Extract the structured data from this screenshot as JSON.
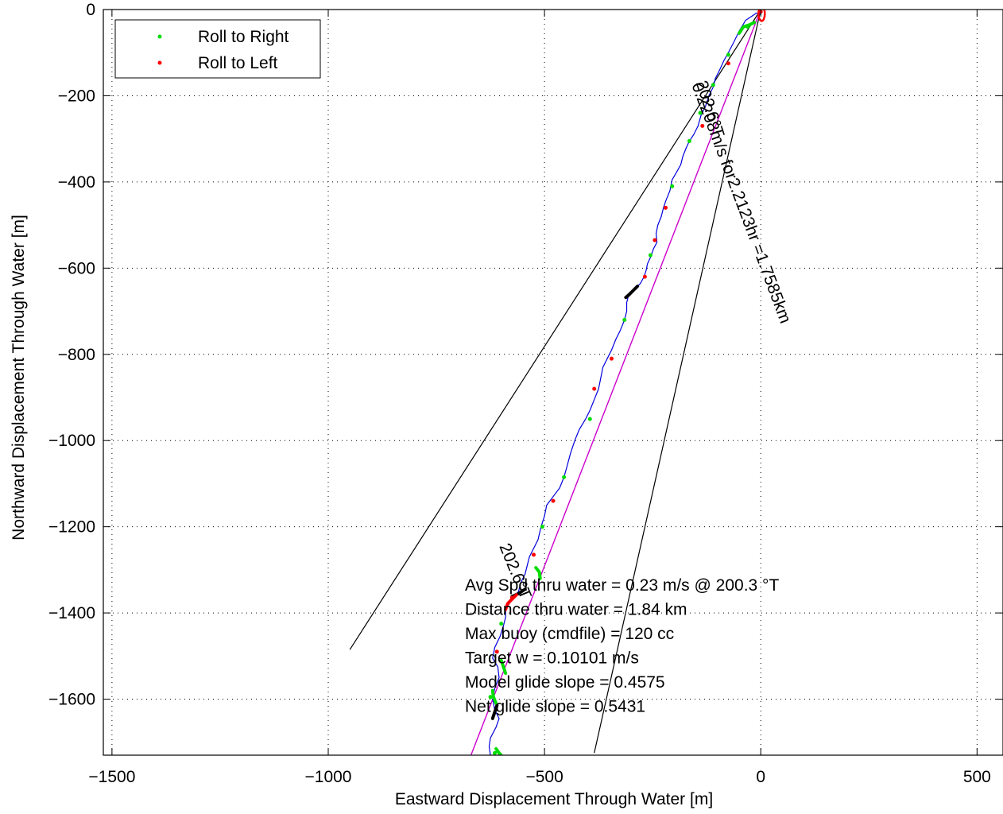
{
  "chart_data": {
    "type": "line",
    "title": "",
    "xlabel": "Eastward Displacement Through Water [m]",
    "ylabel": "Northward Displacement Through Water [m]",
    "xlim": [
      -1520,
      560
    ],
    "ylim": [
      -1730,
      0
    ],
    "x_ticks": [
      -1500,
      -1000,
      -500,
      0,
      500
    ],
    "y_ticks": [
      0,
      -200,
      -400,
      -600,
      -800,
      -1000,
      -1200,
      -1400,
      -1600
    ],
    "x_tick_labels": [
      "−1500",
      "−1000",
      "−500",
      "0",
      "500"
    ],
    "y_tick_labels": [
      "0",
      "−200",
      "−400",
      "−600",
      "−800",
      "−1000",
      "−1200",
      "−1400",
      "−1600"
    ],
    "grid": true,
    "legend": {
      "placement": "top-left",
      "entries": [
        {
          "label": "Roll to Right",
          "color": "#00dd00"
        },
        {
          "label": "Roll to Left",
          "color": "#ff0000"
        }
      ]
    },
    "colors": {
      "track": "#0000dd",
      "net_line": "#cc00cc",
      "reference_lines": "#000000",
      "roll_right": "#00dd00",
      "roll_left": "#ff0000",
      "thick_segments": "#000000"
    },
    "reference_lines": [
      {
        "from": [
          0,
          0
        ],
        "to": [
          -950,
          -1485
        ]
      },
      {
        "from": [
          0,
          0
        ],
        "to": [
          -385,
          -1725
        ]
      }
    ],
    "net_line": {
      "from": [
        0,
        0
      ],
      "to": [
        -670,
        -1730
      ]
    },
    "track": [
      [
        0,
        -10
      ],
      [
        -10,
        -8
      ],
      [
        -20,
        -15
      ],
      [
        -35,
        -25
      ],
      [
        -50,
        -50
      ],
      [
        -62,
        -75
      ],
      [
        -75,
        -100
      ],
      [
        -85,
        -118
      ],
      [
        -95,
        -140
      ],
      [
        -105,
        -160
      ],
      [
        -110,
        -180
      ],
      [
        -120,
        -200
      ],
      [
        -128,
        -225
      ],
      [
        -138,
        -245
      ],
      [
        -145,
        -270
      ],
      [
        -155,
        -290
      ],
      [
        -165,
        -305
      ],
      [
        -172,
        -320
      ],
      [
        -180,
        -340
      ],
      [
        -185,
        -360
      ],
      [
        -195,
        -378
      ],
      [
        -205,
        -395
      ],
      [
        -210,
        -420
      ],
      [
        -220,
        -445
      ],
      [
        -225,
        -460
      ],
      [
        -230,
        -480
      ],
      [
        -238,
        -500
      ],
      [
        -242,
        -520
      ],
      [
        -240,
        -540
      ],
      [
        -248,
        -555
      ],
      [
        -255,
        -575
      ],
      [
        -262,
        -590
      ],
      [
        -265,
        -605
      ],
      [
        -270,
        -620
      ],
      [
        -278,
        -635
      ],
      [
        -290,
        -648
      ],
      [
        -305,
        -660
      ],
      [
        -310,
        -680
      ],
      [
        -310,
        -700
      ],
      [
        -315,
        -720
      ],
      [
        -325,
        -745
      ],
      [
        -335,
        -765
      ],
      [
        -345,
        -790
      ],
      [
        -355,
        -810
      ],
      [
        -365,
        -830
      ],
      [
        -370,
        -855
      ],
      [
        -375,
        -880
      ],
      [
        -385,
        -905
      ],
      [
        -395,
        -930
      ],
      [
        -405,
        -950
      ],
      [
        -420,
        -975
      ],
      [
        -430,
        -1000
      ],
      [
        -440,
        -1030
      ],
      [
        -448,
        -1060
      ],
      [
        -455,
        -1085
      ],
      [
        -465,
        -1110
      ],
      [
        -480,
        -1130
      ],
      [
        -495,
        -1150
      ],
      [
        -500,
        -1175
      ],
      [
        -508,
        -1200
      ],
      [
        -515,
        -1230
      ],
      [
        -525,
        -1250
      ],
      [
        -535,
        -1270
      ],
      [
        -540,
        -1290
      ],
      [
        -545,
        -1310
      ],
      [
        -555,
        -1330
      ],
      [
        -560,
        -1350
      ],
      [
        -575,
        -1370
      ],
      [
        -590,
        -1390
      ],
      [
        -590,
        -1410
      ],
      [
        -595,
        -1430
      ],
      [
        -603,
        -1455
      ],
      [
        -615,
        -1480
      ],
      [
        -620,
        -1505
      ],
      [
        -608,
        -1525
      ],
      [
        -605,
        -1550
      ],
      [
        -615,
        -1575
      ],
      [
        -620,
        -1600
      ],
      [
        -615,
        -1625
      ],
      [
        -605,
        -1645
      ],
      [
        -612,
        -1665
      ],
      [
        -625,
        -1690
      ],
      [
        -628,
        -1710
      ],
      [
        -625,
        -1730
      ]
    ],
    "thick_segments": [
      {
        "color": "#00dd00",
        "points": [
          [
            -15,
            -30
          ],
          [
            -25,
            -35
          ],
          [
            -40,
            -40
          ],
          [
            -50,
            -55
          ]
        ]
      },
      {
        "color": "#000000",
        "points": [
          [
            -285,
            -642
          ],
          [
            -295,
            -652
          ],
          [
            -305,
            -662
          ],
          [
            -312,
            -668
          ]
        ]
      },
      {
        "color": "#00dd00",
        "points": [
          [
            -520,
            -1295
          ],
          [
            -512,
            -1305
          ],
          [
            -510,
            -1320
          ]
        ]
      },
      {
        "color": "#000000",
        "points": [
          [
            -545,
            -1345
          ],
          [
            -560,
            -1355
          ],
          [
            -575,
            -1362
          ]
        ]
      },
      {
        "color": "#ff0000",
        "points": [
          [
            -565,
            -1358
          ],
          [
            -575,
            -1368
          ],
          [
            -585,
            -1378
          ],
          [
            -590,
            -1392
          ]
        ]
      },
      {
        "color": "#00dd00",
        "points": [
          [
            -600,
            -1510
          ],
          [
            -595,
            -1525
          ],
          [
            -590,
            -1540
          ]
        ]
      },
      {
        "color": "#00dd00",
        "points": [
          [
            -620,
            -1580
          ],
          [
            -618,
            -1595
          ],
          [
            -612,
            -1610
          ]
        ]
      },
      {
        "color": "#000000",
        "points": [
          [
            -610,
            -1615
          ],
          [
            -615,
            -1630
          ],
          [
            -620,
            -1645
          ]
        ]
      },
      {
        "color": "#00dd00",
        "points": [
          [
            -612,
            -1715
          ],
          [
            -605,
            -1725
          ],
          [
            -600,
            -1730
          ]
        ]
      }
    ],
    "roll_right_points": [
      [
        -30,
        -40
      ],
      [
        -75,
        -105
      ],
      [
        -110,
        -175
      ],
      [
        -140,
        -240
      ],
      [
        -165,
        -305
      ],
      [
        -205,
        -410
      ],
      [
        -255,
        -570
      ],
      [
        -315,
        -720
      ],
      [
        -395,
        -950
      ],
      [
        -455,
        -1085
      ],
      [
        -505,
        -1200
      ],
      [
        -600,
        -1425
      ],
      [
        -625,
        -1595
      ],
      [
        -615,
        -1725
      ]
    ],
    "roll_left_points": [
      [
        0,
        -5
      ],
      [
        -75,
        -125
      ],
      [
        -135,
        -270
      ],
      [
        -220,
        -460
      ],
      [
        -245,
        -535
      ],
      [
        -268,
        -620
      ],
      [
        -345,
        -810
      ],
      [
        -385,
        -880
      ],
      [
        -480,
        -1140
      ],
      [
        -525,
        -1265
      ],
      [
        -575,
        -1365
      ],
      [
        -610,
        -1490
      ]
    ],
    "annotations": [
      {
        "text": "202.6°T",
        "at": [
          -150,
          -170
        ],
        "angle": 72
      },
      {
        "text": "0.2208m/s for2.2123hr =1.7585km",
        "at": [
          -160,
          -175
        ],
        "angle": 69.5
      },
      {
        "text": "202.6°T",
        "at": [
          -605,
          -1245
        ],
        "angle": 67.5
      }
    ],
    "stats": [
      "Avg Spd thru water =  0.23 m/s @ 200.3   °T",
      "Distance thru water =  1.84 km",
      "Max buoy (cmdfile) = 120 cc",
      "Target w = 0.10101 m/s",
      "Model glide slope = 0.4575",
      "Net glide slope = 0.5431"
    ]
  }
}
